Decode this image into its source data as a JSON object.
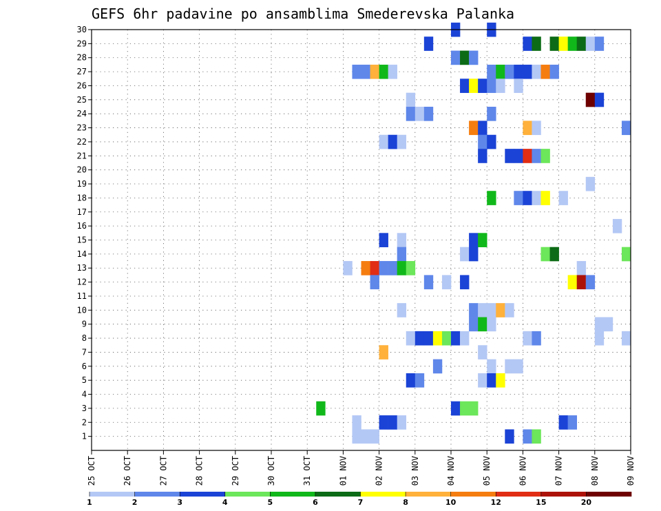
{
  "chart_data": {
    "type": "heatmap",
    "title": "GEFS 6hr padavine po ansamblima Smederevska Palanka",
    "xlabel": "",
    "ylabel": "",
    "x_tick_labels": [
      "25 OCT",
      "26 OCT",
      "27 OCT",
      "28 OCT",
      "29 OCT",
      "30 OCT",
      "31 OCT",
      "01 NOV",
      "02 NOV",
      "03 NOV",
      "04 NOV",
      "05 NOV",
      "06 NOV",
      "07 NOV",
      "08 NOV",
      "09 NOV"
    ],
    "x_unit": "6-hour steps from 25 OCT 00Z",
    "x_range": [
      0,
      60
    ],
    "y_tick_labels": [
      "1",
      "2",
      "3",
      "4",
      "5",
      "6",
      "7",
      "8",
      "9",
      "10",
      "11",
      "12",
      "13",
      "14",
      "15",
      "16",
      "17",
      "18",
      "19",
      "20",
      "21",
      "22",
      "23",
      "24",
      "25",
      "26",
      "27",
      "28",
      "29",
      "30"
    ],
    "y_range": [
      0,
      30
    ],
    "grid": true,
    "colorbar": {
      "placement": "bottom",
      "tick_labels": [
        "1",
        "2",
        "3",
        "4",
        "5",
        "6",
        "7",
        "8",
        "10",
        "12",
        "15",
        "20"
      ],
      "colors": [
        "#b4c8f5",
        "#5f87ea",
        "#1b43d6",
        "#6ce65a",
        "#11b81a",
        "#0c6b16",
        "#ffff00",
        "#ffb13b",
        "#f57d0f",
        "#e02d14",
        "#ad1208",
        "#6e0000"
      ]
    },
    "cells": [
      [
        30,
        40,
        2
      ],
      [
        30,
        44,
        2
      ],
      [
        29,
        37,
        2
      ],
      [
        29,
        48,
        2
      ],
      [
        29,
        49,
        5
      ],
      [
        29,
        51,
        5
      ],
      [
        29,
        52,
        6
      ],
      [
        29,
        53,
        4
      ],
      [
        29,
        54,
        5
      ],
      [
        29,
        55,
        0
      ],
      [
        29,
        56,
        1
      ],
      [
        28,
        40,
        1
      ],
      [
        28,
        41,
        5
      ],
      [
        28,
        42,
        1
      ],
      [
        27,
        29,
        1
      ],
      [
        27,
        30,
        1
      ],
      [
        27,
        31,
        7
      ],
      [
        27,
        32,
        4
      ],
      [
        27,
        33,
        0
      ],
      [
        27,
        44,
        1
      ],
      [
        27,
        45,
        4
      ],
      [
        27,
        46,
        1
      ],
      [
        27,
        47,
        2
      ],
      [
        27,
        48,
        2
      ],
      [
        27,
        49,
        0
      ],
      [
        27,
        50,
        8
      ],
      [
        27,
        51,
        1
      ],
      [
        26,
        41,
        2
      ],
      [
        26,
        42,
        6
      ],
      [
        26,
        43,
        2
      ],
      [
        26,
        44,
        1
      ],
      [
        26,
        45,
        0
      ],
      [
        26,
        47,
        0
      ],
      [
        25,
        35,
        0
      ],
      [
        25,
        55,
        11
      ],
      [
        25,
        56,
        2
      ],
      [
        24,
        35,
        1
      ],
      [
        24,
        36,
        0
      ],
      [
        24,
        37,
        1
      ],
      [
        24,
        44,
        1
      ],
      [
        23,
        42,
        8
      ],
      [
        23,
        43,
        2
      ],
      [
        23,
        48,
        7
      ],
      [
        23,
        49,
        0
      ],
      [
        23,
        59,
        1
      ],
      [
        22,
        32,
        0
      ],
      [
        22,
        33,
        2
      ],
      [
        22,
        34,
        0
      ],
      [
        22,
        43,
        1
      ],
      [
        22,
        44,
        2
      ],
      [
        21,
        43,
        2
      ],
      [
        21,
        46,
        2
      ],
      [
        21,
        47,
        2
      ],
      [
        21,
        48,
        9
      ],
      [
        21,
        49,
        1
      ],
      [
        21,
        50,
        3
      ],
      [
        19,
        55,
        0
      ],
      [
        18,
        44,
        4
      ],
      [
        18,
        47,
        1
      ],
      [
        18,
        48,
        2
      ],
      [
        18,
        49,
        0
      ],
      [
        18,
        50,
        6
      ],
      [
        18,
        52,
        0
      ],
      [
        16,
        58,
        0
      ],
      [
        15,
        32,
        2
      ],
      [
        15,
        34,
        0
      ],
      [
        15,
        42,
        2
      ],
      [
        15,
        43,
        4
      ],
      [
        14,
        34,
        1
      ],
      [
        14,
        41,
        0
      ],
      [
        14,
        42,
        2
      ],
      [
        14,
        50,
        3
      ],
      [
        14,
        51,
        5
      ],
      [
        14,
        59,
        3
      ],
      [
        13,
        28,
        0
      ],
      [
        13,
        30,
        8
      ],
      [
        13,
        31,
        9
      ],
      [
        13,
        32,
        1
      ],
      [
        13,
        33,
        1
      ],
      [
        13,
        34,
        4
      ],
      [
        13,
        35,
        3
      ],
      [
        13,
        54,
        0
      ],
      [
        12,
        31,
        1
      ],
      [
        12,
        37,
        1
      ],
      [
        12,
        39,
        0
      ],
      [
        12,
        41,
        2
      ],
      [
        12,
        53,
        6
      ],
      [
        12,
        54,
        10
      ],
      [
        12,
        55,
        1
      ],
      [
        10,
        34,
        0
      ],
      [
        10,
        42,
        1
      ],
      [
        10,
        43,
        0
      ],
      [
        10,
        44,
        0
      ],
      [
        10,
        45,
        7
      ],
      [
        10,
        46,
        0
      ],
      [
        9,
        42,
        1
      ],
      [
        9,
        43,
        4
      ],
      [
        9,
        44,
        0
      ],
      [
        9,
        56,
        0
      ],
      [
        9,
        57,
        0
      ],
      [
        8,
        35,
        0
      ],
      [
        8,
        36,
        2
      ],
      [
        8,
        37,
        2
      ],
      [
        8,
        38,
        6
      ],
      [
        8,
        39,
        3
      ],
      [
        8,
        40,
        2
      ],
      [
        8,
        41,
        0
      ],
      [
        8,
        48,
        0
      ],
      [
        8,
        49,
        1
      ],
      [
        8,
        56,
        0
      ],
      [
        8,
        59,
        0
      ],
      [
        7,
        32,
        7
      ],
      [
        7,
        43,
        0
      ],
      [
        6,
        38,
        1
      ],
      [
        6,
        44,
        0
      ],
      [
        6,
        46,
        0
      ],
      [
        6,
        47,
        0
      ],
      [
        5,
        35,
        2
      ],
      [
        5,
        36,
        1
      ],
      [
        5,
        43,
        0
      ],
      [
        5,
        44,
        2
      ],
      [
        5,
        45,
        6
      ],
      [
        3,
        25,
        4
      ],
      [
        3,
        40,
        2
      ],
      [
        3,
        41,
        3
      ],
      [
        3,
        42,
        3
      ],
      [
        2,
        29,
        0
      ],
      [
        2,
        32,
        2
      ],
      [
        2,
        33,
        2
      ],
      [
        2,
        34,
        0
      ],
      [
        2,
        52,
        2
      ],
      [
        2,
        53,
        1
      ],
      [
        1,
        29,
        0
      ],
      [
        1,
        30,
        0
      ],
      [
        1,
        31,
        0
      ],
      [
        1,
        46,
        2
      ],
      [
        1,
        48,
        1
      ],
      [
        1,
        49,
        3
      ]
    ]
  }
}
